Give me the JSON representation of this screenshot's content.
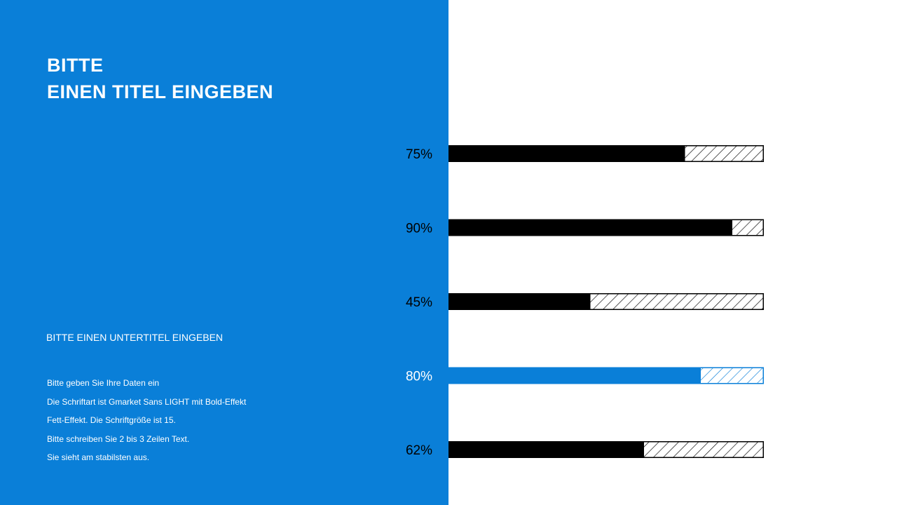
{
  "slide": {
    "title_lines": [
      "BITTE",
      "EINEN TITEL EINGEBEN"
    ],
    "subtitle": "BITTE EINEN UNTERTITEL EINGEBEN",
    "body_lines": [
      "Bitte geben Sie Ihre Daten ein",
      "Die Schriftart ist Gmarket Sans LIGHT mit Bold-Effekt",
      "Fett-Effekt. Die Schriftgröße ist 15.",
      "Bitte schreiben Sie 2 bis 3 Zeilen Text.",
      "Sie sieht am stabilsten aus."
    ]
  },
  "colors": {
    "panel": "#0a7fd8",
    "bar": "#000000",
    "highlight": "#0a7fd8",
    "remainder_hatch": "#000000",
    "label": "#000000",
    "label_on_blue": "#ffffff"
  },
  "chart_data": {
    "type": "bar",
    "orientation": "horizontal",
    "values": [
      75,
      90,
      45,
      80,
      62
    ],
    "labels": [
      "75%",
      "90%",
      "45%",
      "80%",
      "62%"
    ],
    "max": 100,
    "unit": "%",
    "highlight_index": 3,
    "remainder_style": "hatched"
  }
}
